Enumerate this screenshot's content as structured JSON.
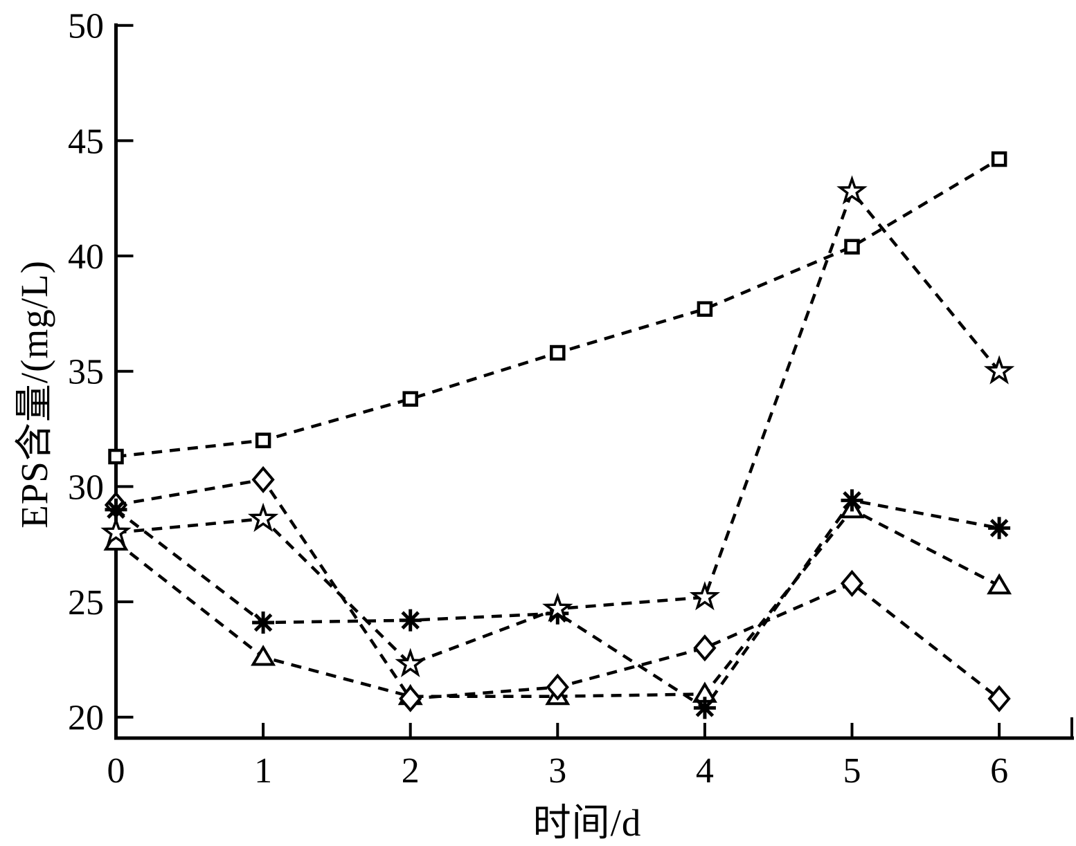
{
  "figure": {
    "background": "#ffffff",
    "ink_color": "#000000"
  },
  "chart_data": {
    "type": "line",
    "title": "",
    "xlabel": "时间/d",
    "ylabel": "EPS含量/(mg/L)",
    "x": [
      0,
      1,
      2,
      3,
      4,
      5,
      6
    ],
    "xticks": [
      0,
      1,
      2,
      3,
      4,
      5,
      6
    ],
    "yticks": [
      20,
      25,
      30,
      35,
      40,
      45,
      50
    ],
    "xlim": [
      0,
      6.5
    ],
    "ylim": [
      19,
      50
    ],
    "grid": false,
    "legend": "none",
    "line_style": "dashed",
    "line_color": "#000000",
    "series": [
      {
        "name": "triangle-series",
        "marker": "triangle",
        "values": [
          27.6,
          22.6,
          20.9,
          20.9,
          21.0,
          29.0,
          25.7
        ]
      },
      {
        "name": "diamond-series",
        "marker": "diamond",
        "values": [
          29.2,
          30.3,
          20.8,
          21.3,
          23.0,
          25.8,
          20.8
        ]
      },
      {
        "name": "asterisk-series",
        "marker": "asterisk",
        "values": [
          29.0,
          24.1,
          24.2,
          24.5,
          20.4,
          29.4,
          28.2
        ]
      },
      {
        "name": "star-series",
        "marker": "star",
        "values": [
          28.0,
          28.6,
          22.3,
          24.7,
          25.2,
          42.8,
          35.0
        ]
      },
      {
        "name": "square-series",
        "marker": "square",
        "values": [
          31.3,
          32.0,
          33.8,
          35.8,
          37.7,
          40.4,
          44.2
        ]
      }
    ]
  }
}
